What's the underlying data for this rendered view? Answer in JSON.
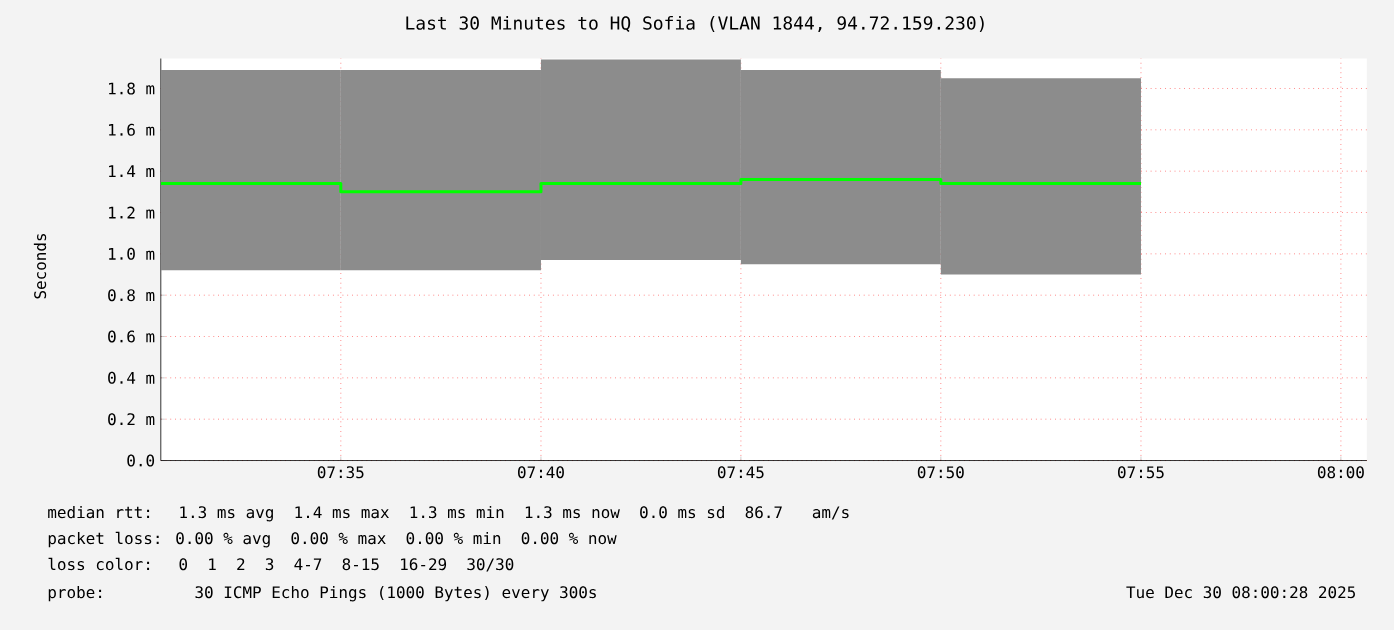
{
  "chart_data": {
    "type": "step",
    "title": "Last 30 Minutes to HQ Sofia (VLAN 1844, 94.72.159.230)",
    "ylabel": "Seconds",
    "x": [
      7.5083,
      7.5833,
      7.6667,
      7.75,
      7.8333,
      7.9167
    ],
    "series": [
      {
        "color": "#00ff00",
        "values": [
          1.34,
          1.3,
          1.34,
          1.36,
          1.34,
          1.34
        ],
        "lower": [
          0.92,
          0.92,
          0.97,
          0.95,
          0.9,
          0.9
        ],
        "upper": [
          1.89,
          1.89,
          1.94,
          1.89,
          1.85,
          1.85
        ]
      }
    ],
    "xlim": [
      7.5083,
      8.0108
    ],
    "ylim": [
      0,
      1.945
    ],
    "xticks": [
      {
        "value": 7.5833,
        "label": "07:35"
      },
      {
        "value": 7.6667,
        "label": "07:40"
      },
      {
        "value": 7.75,
        "label": "07:45"
      },
      {
        "value": 7.8333,
        "label": "07:50"
      },
      {
        "value": 7.9167,
        "label": "07:55"
      },
      {
        "value": 8.0,
        "label": "08:00"
      }
    ],
    "yticks": [
      {
        "value": 0,
        "label": "0.0"
      },
      {
        "value": 0.2,
        "label": "0.2 m"
      },
      {
        "value": 0.4,
        "label": "0.4 m"
      },
      {
        "value": 0.6,
        "label": "0.6 m"
      },
      {
        "value": 0.8,
        "label": "0.8 m"
      },
      {
        "value": 1.0,
        "label": "1.0 m"
      },
      {
        "value": 1.2,
        "label": "1.2 m"
      },
      {
        "value": 1.4,
        "label": "1.4 m"
      },
      {
        "value": 1.6,
        "label": "1.6 m"
      },
      {
        "value": 1.8,
        "label": "1.8 m"
      }
    ],
    "grid": true,
    "annotations": [
      "median rtt:  1.3 ms avg  1.4 ms max  1.3 ms min  1.3 ms now  0.0 ms sd  86.7   am/s",
      "packet loss: 0.00 % avg  0.00 % max  0.00 % min  0.00 % now",
      "loss color:  0  1  2  3  4-7  8-15  16-29  30/30",
      "probe:       30 ICMP Echo Pings (1000 Bytes) every 300s",
      "Tue Dec 30 08:00:28 2025"
    ]
  }
}
